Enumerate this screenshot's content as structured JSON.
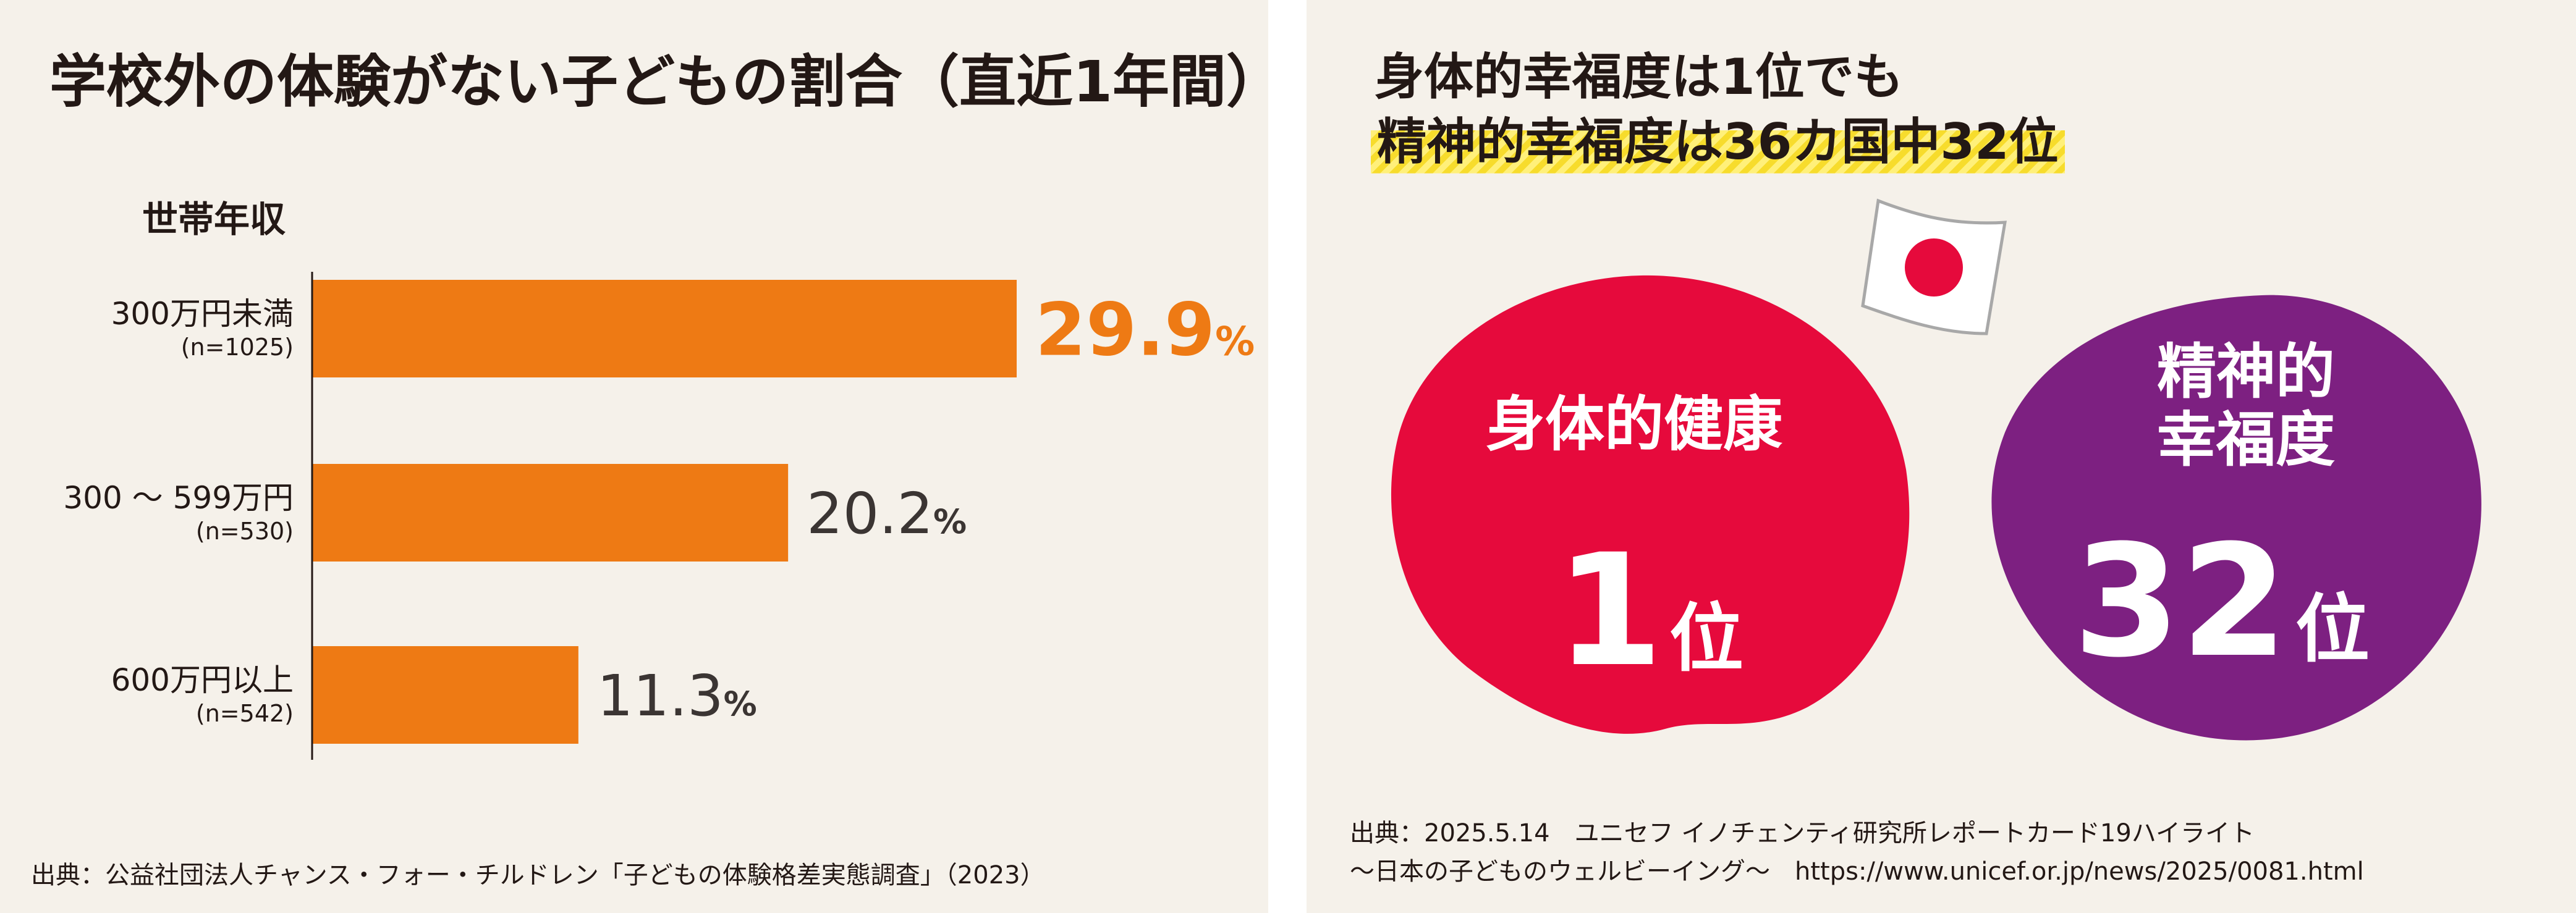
{
  "left": {
    "title": "学校外の体験がない子どもの割合（直近1年間）",
    "source": "出典：公益社団法人チャンス・フォー・チルドレン「子どもの体験格差実態調査」（2023）"
  },
  "chart_data": {
    "type": "bar",
    "orientation": "horizontal",
    "title": "学校外の体験がない子どもの割合（直近1年間）",
    "axis_title": "世帯年収",
    "categories": [
      "300万円未満",
      "300 ～ 599万円",
      "600万円以上"
    ],
    "sample_sizes": [
      "(n=1025)",
      "(n=530)",
      "(n=542)"
    ],
    "values": [
      29.9,
      20.2,
      11.3
    ],
    "value_labels": [
      "29.9",
      "20.2",
      "11.3"
    ],
    "unit": "%",
    "xlim": [
      0,
      35
    ],
    "bar_color": "#ee7a14",
    "highlight_label_color": "#ee7a14",
    "label_color": "#3b3533",
    "grid": false
  },
  "right": {
    "title_line1": "身体的幸福度は1位でも",
    "title_line2": "精神的幸福度は36カ国中32位",
    "physical": {
      "label": "身体的健康",
      "rank_num": "1",
      "rank_suffix": "位",
      "color": "#e60a3c"
    },
    "mental": {
      "label_line1": "精神的",
      "label_line2": "幸福度",
      "rank_num": "32",
      "rank_suffix": "位",
      "color": "#7d2081"
    },
    "flag_icon": "japan-flag-icon",
    "source_line1": "出典：2025.5.14　ユニセフ イノチェンティ研究所レポートカード19ハイライト",
    "source_line2": "～日本の子どものウェルビーイング～　https://www.unicef.or.jp/news/2025/0081.html"
  }
}
